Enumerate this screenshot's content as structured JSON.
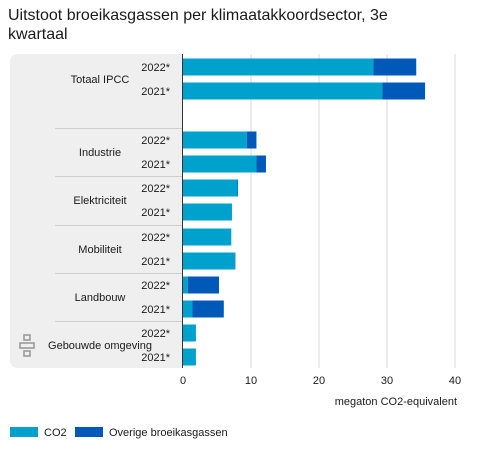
{
  "chart_data": {
    "type": "bar",
    "orientation": "horizontal",
    "stacked": true,
    "title_lines": [
      "Uitstoot broeikasgassen per klimaatakkoordsector, 3e",
      "kwartaal"
    ],
    "xlabel": "megaton CO2-equivalent",
    "xlim": [
      0,
      40
    ],
    "xticks": [
      "0",
      "10",
      "20",
      "30",
      "40"
    ],
    "grid": true,
    "legend_position": "bottom-left",
    "colors": {
      "CO2": "#00a1cd",
      "Overige broeikasgassen": "#0058b8",
      "panel": "#efefef"
    },
    "series": [
      {
        "name": "CO2",
        "color": "#00a1cd"
      },
      {
        "name": "Overige broeikasgassen",
        "color": "#0058b8"
      }
    ],
    "groups": [
      {
        "name": "Totaal IPCC",
        "rows": [
          {
            "year": "2022*",
            "values": [
              28.0,
              6.3
            ]
          },
          {
            "year": "2021*",
            "values": [
              29.3,
              6.3
            ]
          }
        ]
      },
      {
        "name": "Industrie",
        "rows": [
          {
            "year": "2022*",
            "values": [
              9.4,
              1.4
            ]
          },
          {
            "year": "2021*",
            "values": [
              10.8,
              1.4
            ]
          }
        ]
      },
      {
        "name": "Elektriciteit",
        "rows": [
          {
            "year": "2022*",
            "values": [
              8.0,
              0.1
            ]
          },
          {
            "year": "2021*",
            "values": [
              7.2,
              0.0
            ]
          }
        ]
      },
      {
        "name": "Mobiliteit",
        "rows": [
          {
            "year": "2022*",
            "values": [
              7.1,
              0.0
            ]
          },
          {
            "year": "2021*",
            "values": [
              7.6,
              0.1
            ]
          }
        ]
      },
      {
        "name": "Landbouw",
        "rows": [
          {
            "year": "2022*",
            "values": [
              0.7,
              4.6
            ]
          },
          {
            "year": "2021*",
            "values": [
              1.4,
              4.6
            ]
          }
        ]
      },
      {
        "name": "Gebouwde omgeving",
        "rows": [
          {
            "year": "2022*",
            "values": [
              1.9,
              0.0
            ]
          },
          {
            "year": "2021*",
            "values": [
              1.9,
              0.0
            ]
          }
        ]
      }
    ]
  }
}
